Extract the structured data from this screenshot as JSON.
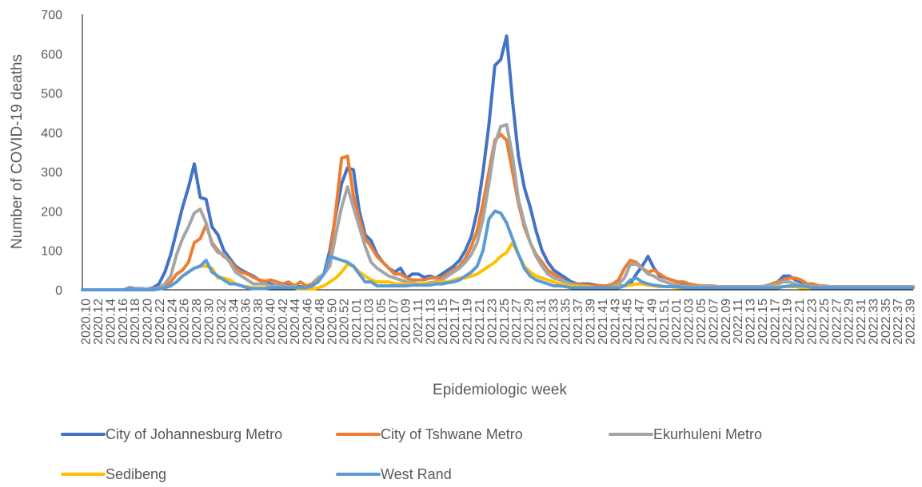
{
  "chart_data": {
    "type": "line",
    "title": "",
    "xlabel": "Epidemiologic week",
    "ylabel": "Number of COVID-19 deaths",
    "ylim": [
      0,
      700
    ],
    "yticks": [
      0,
      100,
      200,
      300,
      400,
      500,
      600,
      700
    ],
    "x_tick_labels": [
      "2020.10",
      "2020.12",
      "2020.14",
      "2020.16",
      "2020.18",
      "2020.20",
      "2020.22",
      "2020.24",
      "2020.26",
      "2020.28",
      "2020.30",
      "2020.32",
      "2020.34",
      "2020.36",
      "2020.38",
      "2020.40",
      "2020.42",
      "2020.44",
      "2020.46",
      "2020.48",
      "2020.50",
      "2020.52",
      "2021.01",
      "2021.03",
      "2021.05",
      "2021.07",
      "2021.09",
      "2021.11",
      "2021.13",
      "2021.15",
      "2021.17",
      "2021.19",
      "2021.21",
      "2021.23",
      "2021.25",
      "2021.27",
      "2021.29",
      "2021.31",
      "2021.33",
      "2021.35",
      "2021.37",
      "2021.39",
      "2021.41",
      "2021.43",
      "2021.45",
      "2021.47",
      "2021.49",
      "2021.51",
      "2022.01",
      "2022.03",
      "2022.05",
      "2022.07",
      "2022.09",
      "2022.11",
      "2022.13",
      "2022.15",
      "2022.17",
      "2022.19",
      "2022.21",
      "2022.23",
      "2022.25",
      "2022.27",
      "2022.29",
      "2022.31",
      "2022.33",
      "2022.35",
      "2022.37",
      "2022.39"
    ],
    "grid": false,
    "legend_position": "bottom",
    "series": [
      {
        "name": "City of Johannesburg Metro",
        "color": "#4472C4",
        "values": [
          0,
          0,
          0,
          0,
          0,
          0,
          0,
          0,
          5,
          3,
          3,
          2,
          5,
          15,
          45,
          90,
          150,
          210,
          260,
          320,
          235,
          230,
          160,
          140,
          100,
          80,
          60,
          50,
          42,
          35,
          25,
          20,
          15,
          10,
          15,
          10,
          10,
          8,
          5,
          15,
          30,
          40,
          100,
          190,
          270,
          310,
          305,
          200,
          140,
          125,
          90,
          70,
          55,
          45,
          55,
          30,
          40,
          40,
          32,
          35,
          30,
          40,
          50,
          60,
          75,
          100,
          135,
          200,
          300,
          420,
          570,
          585,
          645,
          480,
          340,
          260,
          210,
          150,
          100,
          70,
          50,
          40,
          30,
          20,
          15,
          15,
          15,
          12,
          10,
          8,
          8,
          10,
          10,
          15,
          40,
          60,
          85,
          55,
          35,
          30,
          25,
          20,
          15,
          12,
          10,
          8,
          8,
          8,
          8,
          8,
          8,
          8,
          8,
          8,
          8,
          8,
          10,
          15,
          20,
          35,
          35,
          25,
          20,
          15,
          15,
          10,
          8,
          8,
          8,
          8,
          8,
          8,
          8,
          8,
          8,
          8,
          8,
          8,
          8,
          8,
          8,
          8
        ]
      },
      {
        "name": "City of Tshwane Metro",
        "color": "#ED7D31",
        "values": [
          0,
          0,
          0,
          0,
          0,
          0,
          0,
          0,
          2,
          2,
          2,
          2,
          2,
          5,
          10,
          20,
          40,
          50,
          70,
          120,
          130,
          165,
          120,
          100,
          85,
          75,
          55,
          45,
          40,
          32,
          25,
          22,
          25,
          20,
          15,
          20,
          10,
          20,
          10,
          15,
          30,
          40,
          80,
          200,
          335,
          340,
          240,
          180,
          130,
          110,
          85,
          70,
          55,
          40,
          40,
          30,
          25,
          25,
          25,
          30,
          30,
          30,
          40,
          50,
          60,
          80,
          110,
          150,
          220,
          300,
          380,
          395,
          380,
          300,
          220,
          160,
          120,
          90,
          70,
          50,
          40,
          30,
          20,
          15,
          15,
          12,
          12,
          10,
          10,
          10,
          15,
          25,
          55,
          75,
          70,
          55,
          45,
          50,
          40,
          30,
          25,
          20,
          20,
          15,
          12,
          10,
          10,
          10,
          8,
          8,
          8,
          8,
          8,
          8,
          8,
          8,
          10,
          15,
          20,
          25,
          30,
          30,
          25,
          15,
          15,
          10,
          10,
          8,
          8,
          8,
          8,
          8,
          8,
          8,
          8,
          8,
          8,
          8,
          8,
          8,
          8,
          8
        ]
      },
      {
        "name": "Ekurhuleni Metro",
        "color": "#A5A5A5",
        "values": [
          0,
          0,
          0,
          0,
          0,
          0,
          0,
          0,
          2,
          2,
          2,
          2,
          2,
          5,
          15,
          35,
          90,
          130,
          160,
          195,
          205,
          170,
          115,
          95,
          90,
          70,
          45,
          35,
          25,
          15,
          15,
          15,
          10,
          10,
          10,
          8,
          8,
          5,
          5,
          10,
          30,
          40,
          60,
          140,
          210,
          262,
          210,
          160,
          110,
          70,
          55,
          45,
          35,
          30,
          25,
          20,
          18,
          15,
          15,
          18,
          20,
          25,
          35,
          45,
          55,
          70,
          90,
          120,
          180,
          270,
          370,
          415,
          420,
          340,
          230,
          170,
          120,
          85,
          60,
          40,
          30,
          25,
          20,
          15,
          10,
          10,
          8,
          5,
          5,
          5,
          8,
          15,
          30,
          65,
          65,
          55,
          40,
          35,
          25,
          20,
          15,
          12,
          10,
          8,
          8,
          8,
          8,
          8,
          8,
          8,
          8,
          8,
          8,
          8,
          8,
          8,
          10,
          12,
          15,
          20,
          20,
          15,
          12,
          10,
          8,
          8,
          8,
          8,
          8,
          8,
          8,
          8,
          8,
          8,
          8,
          8,
          8,
          8,
          8,
          8,
          8,
          8
        ]
      },
      {
        "name": "Sedibeng",
        "color": "#FFC000",
        "values": [
          0,
          0,
          0,
          0,
          0,
          0,
          0,
          0,
          0,
          0,
          0,
          0,
          0,
          2,
          5,
          10,
          20,
          35,
          45,
          55,
          60,
          60,
          55,
          30,
          30,
          25,
          15,
          10,
          8,
          5,
          5,
          5,
          5,
          5,
          5,
          5,
          5,
          2,
          2,
          2,
          5,
          10,
          20,
          30,
          45,
          65,
          60,
          45,
          35,
          25,
          20,
          20,
          20,
          15,
          15,
          15,
          15,
          15,
          15,
          15,
          18,
          20,
          20,
          25,
          30,
          30,
          35,
          40,
          50,
          60,
          70,
          85,
          95,
          120,
          90,
          60,
          45,
          35,
          30,
          25,
          20,
          15,
          12,
          10,
          8,
          8,
          8,
          5,
          5,
          5,
          5,
          8,
          10,
          12,
          15,
          15,
          12,
          10,
          8,
          8,
          8,
          5,
          5,
          5,
          5,
          5,
          5,
          5,
          5,
          5,
          5,
          5,
          5,
          5,
          5,
          5,
          5,
          5,
          8,
          8,
          8,
          8,
          5,
          5,
          5,
          5,
          5,
          5,
          5,
          5,
          5,
          5,
          5,
          5,
          5,
          5,
          5,
          5,
          5,
          5,
          5,
          5
        ]
      },
      {
        "name": "West Rand",
        "color": "#5B9BD5",
        "values": [
          0,
          0,
          0,
          0,
          0,
          0,
          0,
          0,
          0,
          0,
          0,
          0,
          0,
          2,
          5,
          10,
          20,
          35,
          45,
          55,
          60,
          75,
          45,
          35,
          25,
          15,
          15,
          10,
          5,
          3,
          3,
          3,
          5,
          5,
          5,
          5,
          5,
          5,
          5,
          10,
          20,
          40,
          85,
          80,
          75,
          70,
          60,
          40,
          20,
          20,
          10,
          10,
          10,
          10,
          10,
          10,
          12,
          12,
          12,
          12,
          15,
          15,
          18,
          20,
          25,
          35,
          45,
          60,
          100,
          180,
          200,
          195,
          170,
          130,
          90,
          55,
          35,
          25,
          20,
          15,
          10,
          10,
          8,
          5,
          5,
          5,
          5,
          5,
          5,
          5,
          5,
          5,
          10,
          25,
          30,
          20,
          15,
          12,
          10,
          8,
          8,
          8,
          5,
          5,
          5,
          5,
          5,
          5,
          5,
          5,
          5,
          5,
          5,
          5,
          5,
          5,
          5,
          5,
          5,
          8,
          10,
          10,
          10,
          8,
          5,
          5,
          5,
          5,
          5,
          5,
          5,
          5,
          5,
          5,
          5,
          5,
          5,
          5,
          5,
          5,
          5,
          5
        ]
      }
    ]
  }
}
